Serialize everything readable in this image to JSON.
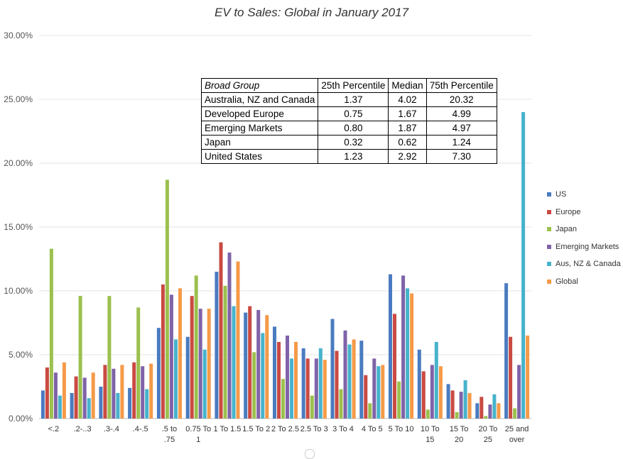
{
  "chart_data": {
    "type": "bar",
    "title": "EV to Sales: Global in January 2017",
    "xlabel": "",
    "ylabel": "",
    "ylim": [
      0,
      30
    ],
    "yticks": [
      "0.00%",
      "5.00%",
      "10.00%",
      "15.00%",
      "20.00%",
      "25.00%",
      "30.00%"
    ],
    "grid": true,
    "legend_position": "right",
    "categories": [
      [
        "<.2"
      ],
      [
        ".2-..3"
      ],
      [
        ".3-.4"
      ],
      [
        ".4-.5"
      ],
      [
        ".5  to",
        ".75"
      ],
      [
        "0.75 To",
        "1"
      ],
      [
        "1 To 1.5"
      ],
      [
        "1.5 To 2"
      ],
      [
        "2 To 2.5"
      ],
      [
        "2.5 To 3"
      ],
      [
        "3 To 4"
      ],
      [
        "4 To 5"
      ],
      [
        "5 To 10"
      ],
      [
        "10 To",
        "15"
      ],
      [
        "15 To",
        "20"
      ],
      [
        "20 To",
        "25"
      ],
      [
        "25 and",
        "over"
      ]
    ],
    "series": [
      {
        "name": "US",
        "color": "#4a7bc0",
        "values": [
          2.2,
          2.0,
          2.5,
          2.4,
          7.1,
          6.4,
          11.5,
          8.3,
          7.2,
          5.5,
          7.8,
          6.1,
          11.3,
          5.4,
          2.7,
          1.2,
          10.6
        ]
      },
      {
        "name": "Europe",
        "color": "#c94a42",
        "values": [
          4.0,
          3.3,
          4.2,
          4.4,
          10.5,
          9.6,
          13.8,
          8.8,
          6.0,
          4.7,
          5.3,
          3.4,
          8.2,
          3.7,
          2.2,
          1.7,
          6.4
        ]
      },
      {
        "name": "Japan",
        "color": "#9cc04e",
        "values": [
          13.3,
          9.6,
          9.6,
          8.7,
          18.7,
          11.2,
          10.4,
          5.2,
          3.1,
          1.8,
          2.3,
          1.2,
          2.9,
          0.7,
          0.5,
          0.2,
          0.8
        ]
      },
      {
        "name": "Emerging Markets",
        "color": "#7f63a8",
        "values": [
          3.6,
          3.2,
          3.9,
          4.1,
          9.7,
          8.6,
          13.0,
          8.5,
          6.5,
          4.7,
          6.9,
          4.7,
          11.2,
          4.2,
          2.1,
          1.1,
          4.2
        ]
      },
      {
        "name": "Aus, NZ & Canada",
        "color": "#47b3cc",
        "values": [
          1.8,
          1.6,
          2.0,
          2.3,
          6.2,
          5.4,
          8.8,
          6.7,
          4.7,
          5.5,
          5.8,
          4.1,
          10.2,
          6.0,
          3.0,
          1.9,
          24.0
        ]
      },
      {
        "name": "Global",
        "color": "#f59a48",
        "values": [
          4.4,
          3.6,
          4.2,
          4.3,
          10.2,
          8.6,
          12.3,
          8.1,
          6.0,
          4.6,
          6.2,
          4.2,
          9.8,
          4.1,
          2.0,
          1.2,
          6.5
        ]
      }
    ]
  },
  "stats_table": {
    "headers": [
      "Broad Group",
      "25th Percentile",
      "Median",
      "75th Percentile"
    ],
    "rows": [
      {
        "group": "Australia, NZ and Canada",
        "p25": "1.37",
        "median": "4.02",
        "p75": "20.32"
      },
      {
        "group": "Developed Europe",
        "p25": "0.75",
        "median": "1.67",
        "p75": "4.99"
      },
      {
        "group": "Emerging Markets",
        "p25": "0.80",
        "median": "1.87",
        "p75": "4.97"
      },
      {
        "group": "Japan",
        "p25": "0.32",
        "median": "0.62",
        "p75": "1.24"
      },
      {
        "group": "United States",
        "p25": "1.23",
        "median": "2.92",
        "p75": "7.30"
      }
    ]
  }
}
